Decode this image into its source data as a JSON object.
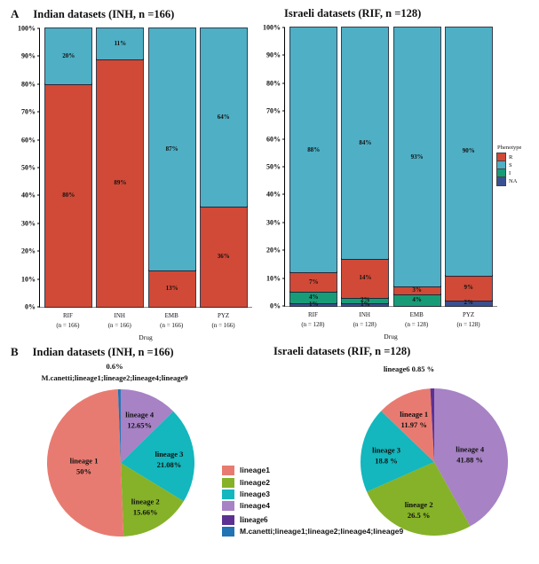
{
  "panelA": {
    "label": "A"
  },
  "panelB": {
    "label": "B"
  },
  "legends": {
    "phenotype": {
      "title": "Phenotype",
      "items": [
        {
          "label": "R",
          "color": "#d04a37"
        },
        {
          "label": "S",
          "color": "#4eafc5"
        },
        {
          "label": "I",
          "color": "#189c77"
        },
        {
          "label": "NA",
          "color": "#3a5191"
        }
      ]
    },
    "lineage": {
      "items": [
        {
          "label": "lineage1",
          "color": "#e87b71"
        },
        {
          "label": "lineage2",
          "color": "#85b228"
        },
        {
          "label": "lineage3",
          "color": "#13b7bd"
        },
        {
          "label": "lineage4",
          "color": "#a782c5"
        },
        {
          "label": "lineage6",
          "color": "#5c3191"
        },
        {
          "label": "M.canetti;lineage1;lineage2;lineage4;lineage9",
          "color": "#2173b4"
        }
      ]
    }
  },
  "chart_data": [
    {
      "type": "bar",
      "stacked": true,
      "title": "Indian datasets  (INH, n =166)",
      "xlabel": "Drug",
      "categories": [
        "RIF",
        "INH",
        "EMB",
        "PYZ"
      ],
      "category_sublabels": [
        "(n = 166)",
        "(n = 166)",
        "(n = 166)",
        "(n = 166)"
      ],
      "ylim": [
        0,
        100
      ],
      "yticks": [
        "0%",
        "10%",
        "20%",
        "30%",
        "40%",
        "50%",
        "60%",
        "70%",
        "80%",
        "90%",
        "100%"
      ],
      "legend_title": "Phenotype",
      "legend_position": "right",
      "series": [
        {
          "name": "NA",
          "color": "#3a5191",
          "values": [
            0,
            0,
            0,
            0
          ]
        },
        {
          "name": "I",
          "color": "#189c77",
          "values": [
            0,
            0,
            0,
            0
          ]
        },
        {
          "name": "R",
          "color": "#d04a37",
          "values": [
            80,
            89,
            13,
            36
          ]
        },
        {
          "name": "S",
          "color": "#4eafc5",
          "values": [
            20,
            11,
            87,
            64
          ]
        }
      ]
    },
    {
      "type": "bar",
      "stacked": true,
      "title": "Israeli datasets (RIF, n =128)",
      "xlabel": "Drug",
      "categories": [
        "RIF",
        "INH",
        "EMB",
        "PYZ"
      ],
      "category_sublabels": [
        "(n = 128)",
        "(n = 128)",
        "(n = 128)",
        "(n = 128)"
      ],
      "ylim": [
        0,
        100
      ],
      "yticks": [
        "0%",
        "10%",
        "20%",
        "30%",
        "40%",
        "50%",
        "60%",
        "70%",
        "80%",
        "90%",
        "100%"
      ],
      "legend_title": "Phenotype",
      "legend_position": "right",
      "series": [
        {
          "name": "NA",
          "color": "#3a5191",
          "values": [
            1,
            1,
            0,
            2
          ]
        },
        {
          "name": "I",
          "color": "#189c77",
          "values": [
            4,
            2,
            4,
            0
          ]
        },
        {
          "name": "R",
          "color": "#d04a37",
          "values": [
            7,
            14,
            3,
            9
          ]
        },
        {
          "name": "S",
          "color": "#4eafc5",
          "values": [
            88,
            84,
            93,
            90
          ]
        }
      ]
    },
    {
      "type": "pie",
      "title": "Indian datasets  (INH, n =166)",
      "annotation": [
        "0.6%",
        "M.canetti;lineage1;lineage2;lineage4;lineage9"
      ],
      "slices": [
        {
          "name": "lineage 4",
          "value": 12.65,
          "label": "12.65%",
          "color": "#a782c5"
        },
        {
          "name": "lineage 3",
          "value": 21.08,
          "label": "21.08%",
          "color": "#13b7bd"
        },
        {
          "name": "lineage 2",
          "value": 15.66,
          "label": "15.66%",
          "color": "#85b228"
        },
        {
          "name": "lineage 1",
          "value": 50,
          "label": "50%",
          "color": "#e87b71"
        },
        {
          "name": "M.canetti;lineage1;lineage2;lineage4;lineage9",
          "value": 0.6,
          "label": "",
          "color": "#2173b4"
        }
      ]
    },
    {
      "type": "pie",
      "title": "Israeli datasets (RIF, n =128)",
      "annotation": [
        "lineage6  0.85 %"
      ],
      "slices": [
        {
          "name": "lineage 4",
          "value": 41.88,
          "label": "41.88 %",
          "color": "#a782c5"
        },
        {
          "name": "lineage 2",
          "value": 26.5,
          "label": "26.5 %",
          "color": "#85b228"
        },
        {
          "name": "lineage 3",
          "value": 18.8,
          "label": "18.8 %",
          "color": "#13b7bd"
        },
        {
          "name": "lineage 1",
          "value": 11.97,
          "label": "11.97 %",
          "color": "#e87b71"
        },
        {
          "name": "lineage6",
          "value": 0.85,
          "label": "",
          "color": "#5c3191"
        }
      ]
    }
  ]
}
